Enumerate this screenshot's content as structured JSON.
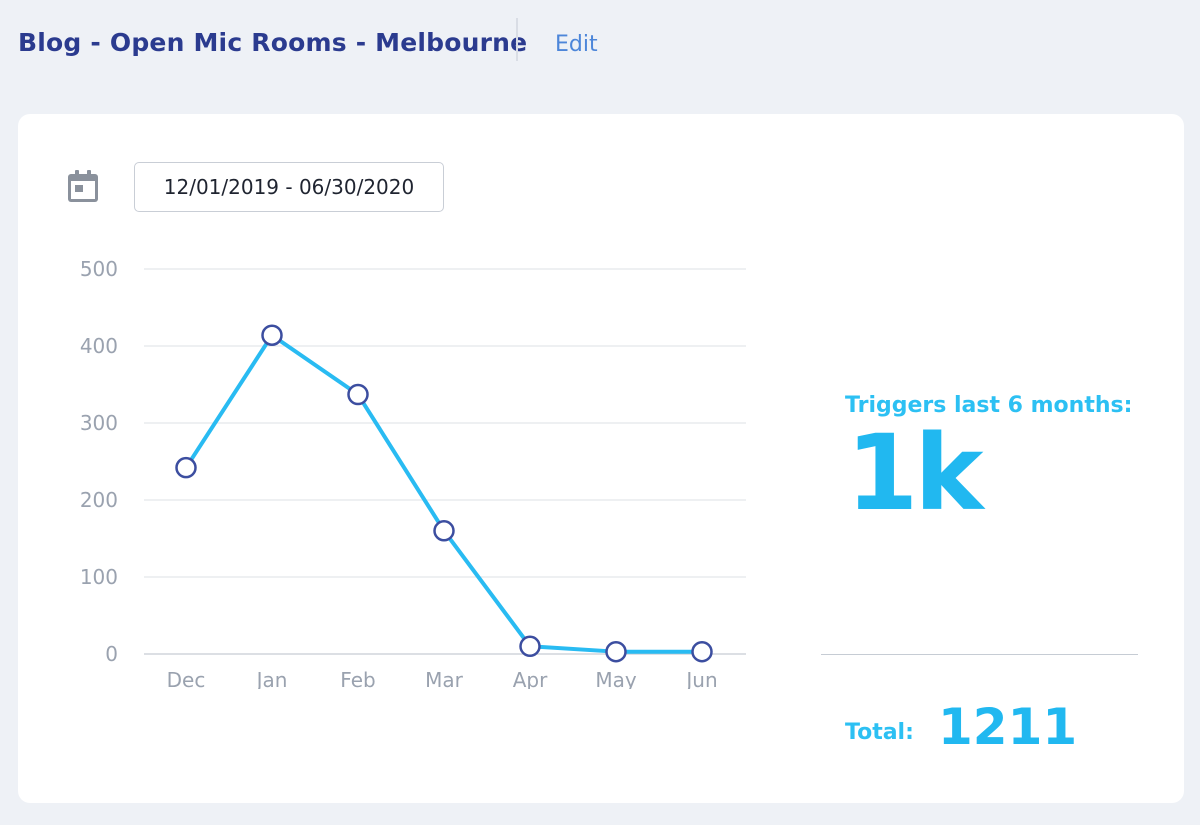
{
  "header": {
    "title": "Blog - Open Mic Rooms - Melbourne",
    "edit_label": "Edit"
  },
  "filters": {
    "calendar_icon": "calendar-icon",
    "date_range": "12/01/2019 - 06/30/2020"
  },
  "stats": {
    "triggers_label": "Triggers last 6 months:",
    "triggers_value": "1k",
    "total_label": "Total:",
    "total_value": "1211"
  },
  "colors": {
    "title": "#2b3b8f",
    "accent": "#21b8f0",
    "line": "#29bbf2",
    "marker_stroke": "#3c4ea0",
    "background": "#eef1f6",
    "card": "#ffffff"
  },
  "chart_data": {
    "type": "line",
    "categories": [
      "Dec",
      "Jan",
      "Feb",
      "Mar",
      "Apr",
      "May",
      "Jun"
    ],
    "values": [
      242,
      414,
      337,
      160,
      10,
      3,
      3
    ],
    "ylim": [
      0,
      500
    ],
    "yticks": [
      0,
      100,
      200,
      300,
      400,
      500
    ],
    "grid": true,
    "title": "",
    "xlabel": "",
    "ylabel": ""
  }
}
